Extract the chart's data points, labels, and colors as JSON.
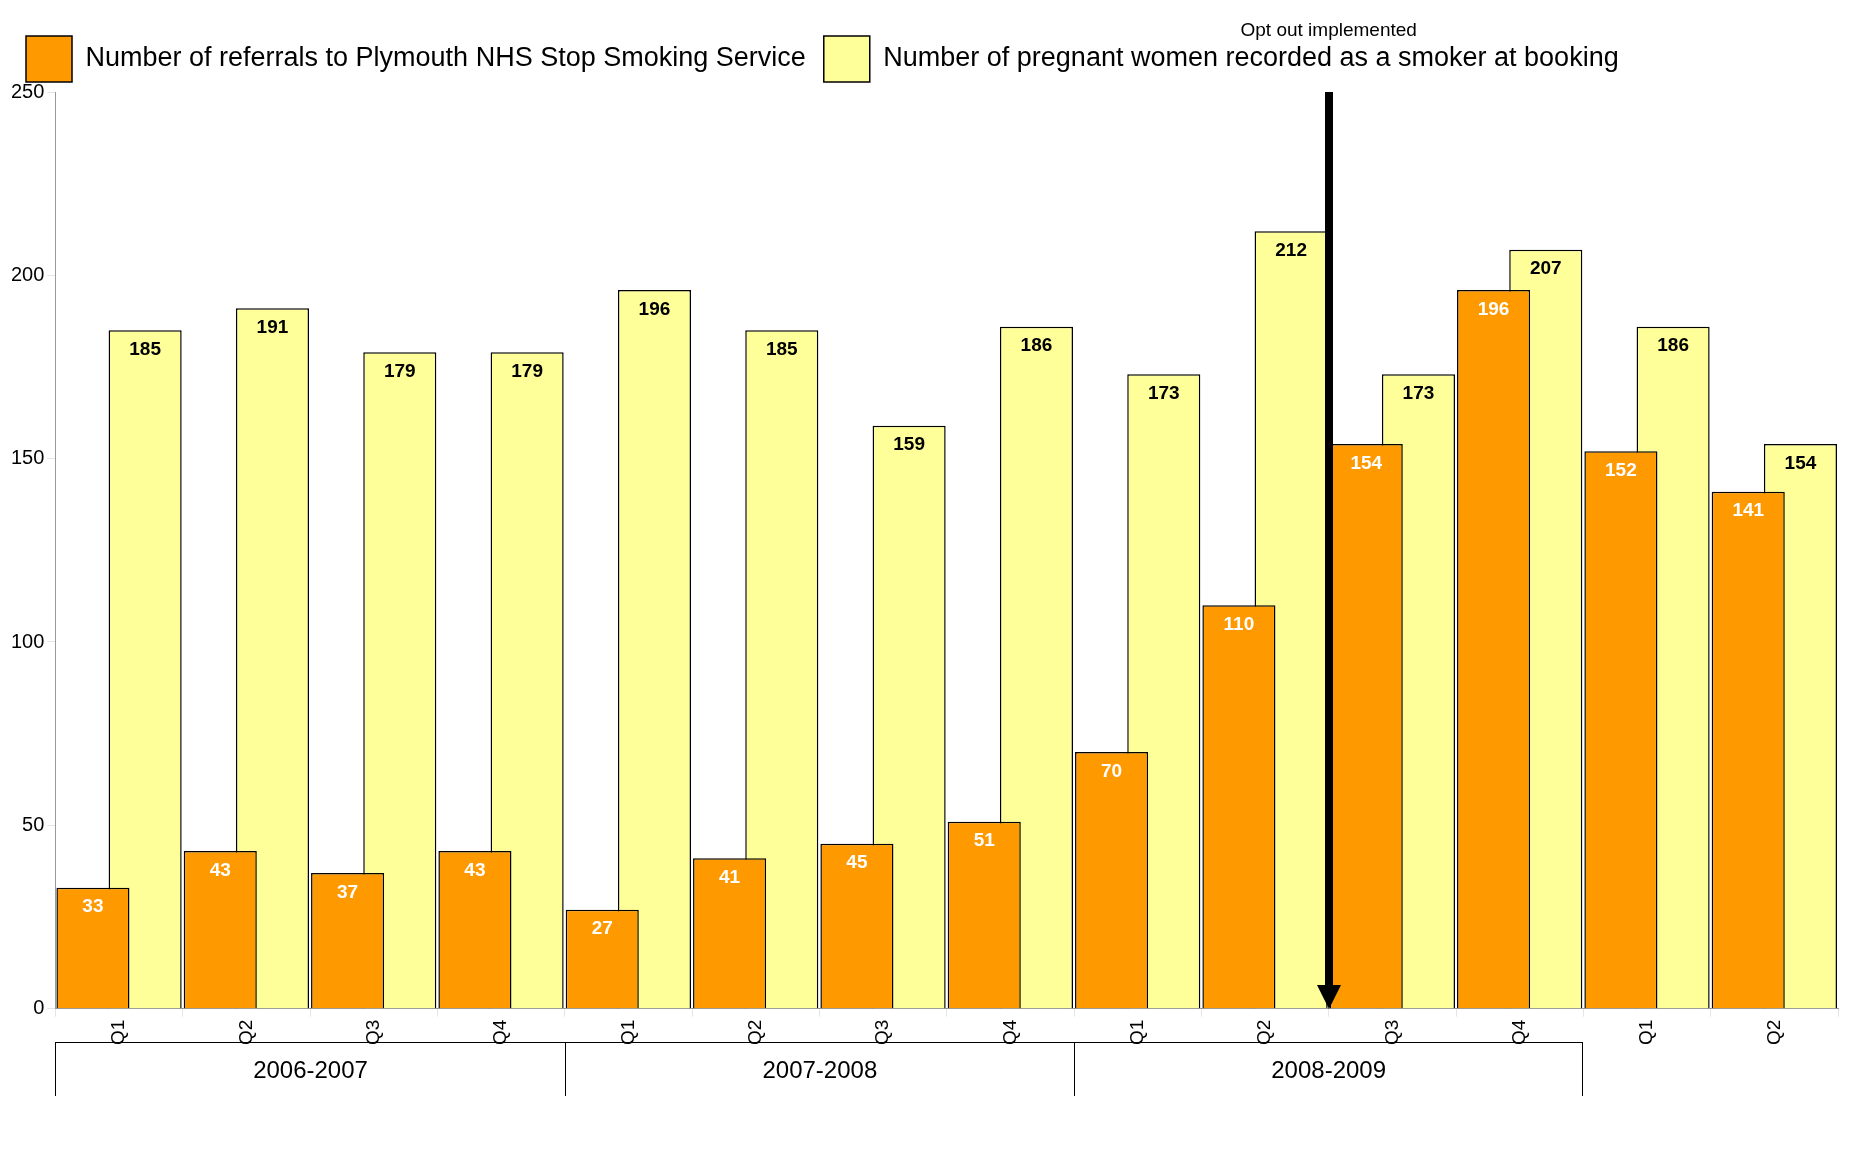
{
  "chart_data": {
    "type": "bar",
    "categories": [
      "Q1",
      "Q2",
      "Q3",
      "Q4",
      "Q1",
      "Q2",
      "Q3",
      "Q4",
      "Q1",
      "Q2",
      "Q3",
      "Q4",
      "Q1",
      "Q2"
    ],
    "series": [
      {
        "name": "Number of pregnant women recorded as a smoker at booking",
        "color": "#ffff99",
        "values": [
          185,
          191,
          179,
          179,
          196,
          185,
          159,
          186,
          173,
          212,
          173,
          207,
          186,
          154
        ]
      },
      {
        "name": "Number of referrals to Plymouth NHS Stop Smoking Service",
        "color": "#ff9900",
        "values": [
          33,
          43,
          37,
          43,
          27,
          41,
          45,
          51,
          70,
          110,
          154,
          196,
          152,
          141
        ]
      }
    ],
    "ylim": [
      0,
      250
    ],
    "yticks": [
      0,
      50,
      100,
      150,
      200,
      250
    ],
    "grid": false,
    "legend": "top left",
    "data_labels": true,
    "annotations": [
      "Opt out implemented",
      "2006-2007",
      "2007-2008",
      "2008-2009"
    ]
  }
}
